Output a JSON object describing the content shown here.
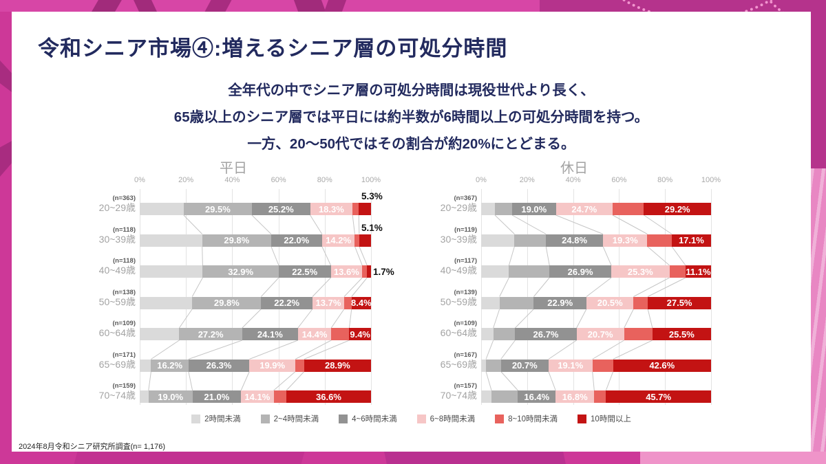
{
  "header": {
    "title": "令和シニア市場④:増えるシニア層の可処分時間",
    "subtitle_lines": [
      "全年代の中でシニア層の可処分時間は現役世代より長く、",
      "65歳以上のシニア層では平日には約半数が6時間以上の可処分時間を持つ。",
      "一方、20〜50代ではその割合が約20%にとどまる。"
    ]
  },
  "legend": {
    "items": [
      {
        "label": "2時間未満",
        "color": "#dadada"
      },
      {
        "label": "2~4時間未満",
        "color": "#b4b4b4"
      },
      {
        "label": "4~6時間未満",
        "color": "#929292"
      },
      {
        "label": "6~8時間未満",
        "color": "#f6c6c6"
      },
      {
        "label": "8~10時間未満",
        "color": "#e8625d"
      },
      {
        "label": "10時間以上",
        "color": "#c31313"
      }
    ]
  },
  "footer": {
    "text": "2024年8月令和シニア研究所調査(n= 1,176)"
  },
  "colors": {
    "background": "#cd3898",
    "card": "#ffffff",
    "heading": "#222a5e",
    "grid": "#e3e3e3",
    "connector": "#c6c6c6"
  },
  "chart_data": [
    {
      "type": "bar",
      "stacked": true,
      "orientation": "horizontal",
      "title": "平日",
      "x_ticks": [
        "0%",
        "20%",
        "40%",
        "60%",
        "80%",
        "100%"
      ],
      "xlim": [
        0,
        100
      ],
      "categories": [
        "20~29歳",
        "30~39歳",
        "40~49歳",
        "50~59歳",
        "60~64歳",
        "65~69歳",
        "70~74歳"
      ],
      "sample_sizes": [
        "(n=363)",
        "(n=118)",
        "(n=118)",
        "(n=138)",
        "(n=109)",
        "(n=171)",
        "(n=159)"
      ],
      "series": [
        {
          "name": "2時間未満",
          "values": [
            19.0,
            27.0,
            27.2,
            22.7,
            17.1,
            4.9,
            3.8
          ]
        },
        {
          "name": "2~4時間未満",
          "values": [
            29.5,
            29.8,
            32.9,
            29.8,
            27.2,
            16.2,
            19.0
          ]
        },
        {
          "name": "4~6時間未満",
          "values": [
            25.2,
            22.0,
            22.5,
            22.2,
            24.1,
            26.3,
            21.0
          ]
        },
        {
          "name": "6~8時間未満",
          "values": [
            18.3,
            14.2,
            13.6,
            13.7,
            14.4,
            19.9,
            14.1
          ]
        },
        {
          "name": "8~10時間未満",
          "values": [
            2.7,
            1.9,
            2.1,
            3.2,
            7.8,
            3.8,
            5.5
          ]
        },
        {
          "name": "10時間以上",
          "values": [
            5.3,
            5.1,
            1.7,
            8.4,
            9.4,
            28.9,
            36.6
          ]
        }
      ],
      "value_labels": [
        [
          null,
          "29.5%",
          "25.2%",
          "18.3%",
          null,
          null
        ],
        [
          null,
          "29.8%",
          "22.0%",
          "14.2%",
          null,
          null
        ],
        [
          null,
          "32.9%",
          "22.5%",
          "13.6%",
          null,
          null
        ],
        [
          null,
          "29.8%",
          "22.2%",
          "13.7%",
          null,
          "8.4%"
        ],
        [
          null,
          "27.2%",
          "24.1%",
          "14.4%",
          null,
          "9.4%"
        ],
        [
          null,
          "16.2%",
          "26.3%",
          "19.9%",
          null,
          "28.9%"
        ],
        [
          null,
          "19.0%",
          "21.0%",
          "14.1%",
          null,
          "36.6%"
        ]
      ],
      "outside_labels": [
        {
          "row": 0,
          "text": "5.3%",
          "position": "above"
        },
        {
          "row": 1,
          "text": "5.1%",
          "position": "above"
        },
        {
          "row": 2,
          "text": "1.7%",
          "position": "right"
        }
      ]
    },
    {
      "type": "bar",
      "stacked": true,
      "orientation": "horizontal",
      "title": "休日",
      "x_ticks": [
        "0%",
        "20%",
        "40%",
        "60%",
        "80%",
        "100%"
      ],
      "xlim": [
        0,
        100
      ],
      "categories": [
        "20~29歳",
        "30~39歳",
        "40~49歳",
        "50~59歳",
        "60~64歳",
        "65~69歳",
        "70~74歳"
      ],
      "sample_sizes": [
        "(n=367)",
        "(n=119)",
        "(n=117)",
        "(n=139)",
        "(n=109)",
        "(n=167)",
        "(n=157)"
      ],
      "series": [
        {
          "name": "2時間未満",
          "values": [
            6.0,
            14.5,
            12.1,
            8.0,
            5.3,
            2.1,
            4.5
          ]
        },
        {
          "name": "2~4時間未満",
          "values": [
            7.5,
            13.7,
            17.6,
            14.9,
            9.5,
            6.5,
            11.5
          ]
        },
        {
          "name": "4~6時間未満",
          "values": [
            19.0,
            24.8,
            26.9,
            22.9,
            26.7,
            20.7,
            16.4
          ]
        },
        {
          "name": "6~8時間未満",
          "values": [
            24.7,
            19.3,
            25.3,
            20.5,
            20.7,
            19.1,
            16.8
          ]
        },
        {
          "name": "8~10時間未満",
          "values": [
            13.6,
            10.6,
            7.0,
            6.2,
            12.3,
            9.0,
            5.1
          ]
        },
        {
          "name": "10時間以上",
          "values": [
            29.2,
            17.1,
            11.1,
            27.5,
            25.5,
            42.6,
            45.7
          ]
        }
      ],
      "value_labels": [
        [
          null,
          null,
          "19.0%",
          "24.7%",
          null,
          "29.2%"
        ],
        [
          null,
          null,
          "24.8%",
          "19.3%",
          null,
          "17.1%"
        ],
        [
          null,
          null,
          "26.9%",
          "25.3%",
          null,
          "11.1%"
        ],
        [
          null,
          null,
          "22.9%",
          "20.5%",
          null,
          "27.5%"
        ],
        [
          null,
          null,
          "26.7%",
          "20.7%",
          null,
          "25.5%"
        ],
        [
          null,
          null,
          "20.7%",
          "19.1%",
          null,
          "42.6%"
        ],
        [
          null,
          null,
          "16.4%",
          "16.8%",
          null,
          "45.7%"
        ]
      ],
      "outside_labels": []
    }
  ]
}
